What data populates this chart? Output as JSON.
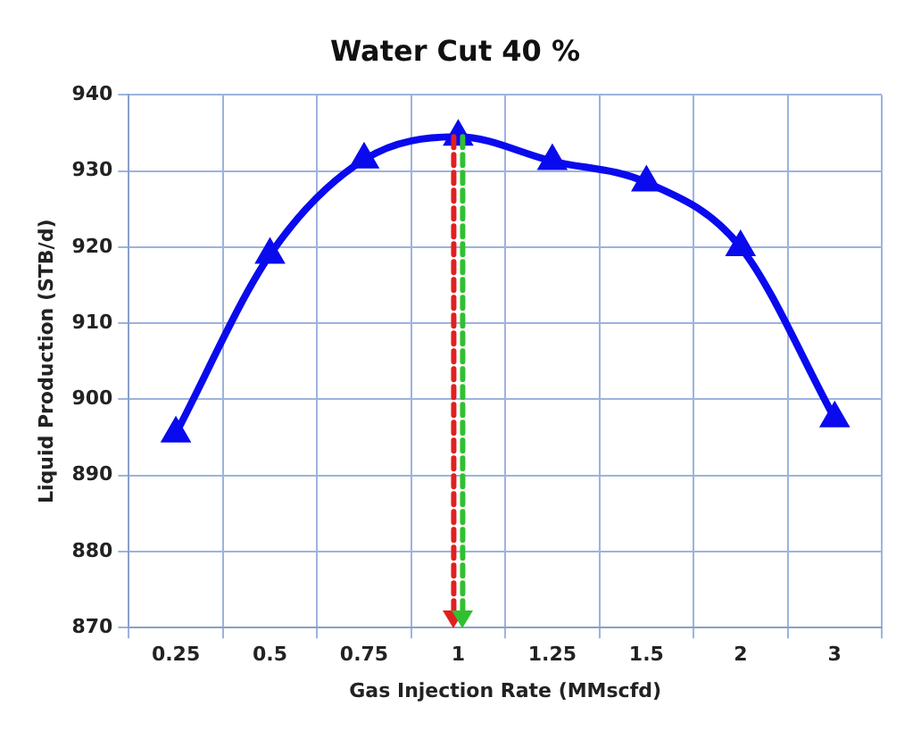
{
  "chart_data": {
    "type": "line",
    "title": "Water Cut 40 %",
    "xlabel": "Gas Injection Rate (MMscfd)",
    "ylabel": "Liquid Production (STB/d)",
    "categories": [
      "0.25",
      "0.5",
      "0.75",
      "1",
      "1.25",
      "1.5",
      "2",
      "3"
    ],
    "series": [
      {
        "color": "#0a0aee",
        "values": [
          895.5,
          919,
          931.5,
          934.5,
          931.3,
          928.5,
          920,
          897.5
        ]
      }
    ],
    "ylim": [
      870,
      940
    ],
    "yticks": [
      870,
      880,
      890,
      900,
      910,
      920,
      930,
      940
    ],
    "ref_lines": [
      {
        "axis": "x",
        "value": "1",
        "color": "#e02020",
        "line_style": "dashed"
      },
      {
        "axis": "x",
        "value": "1",
        "color": "#30c030",
        "line_style": "dashed"
      }
    ],
    "grid": true,
    "marker": "triangle",
    "line_style": "solid",
    "legend": false
  }
}
